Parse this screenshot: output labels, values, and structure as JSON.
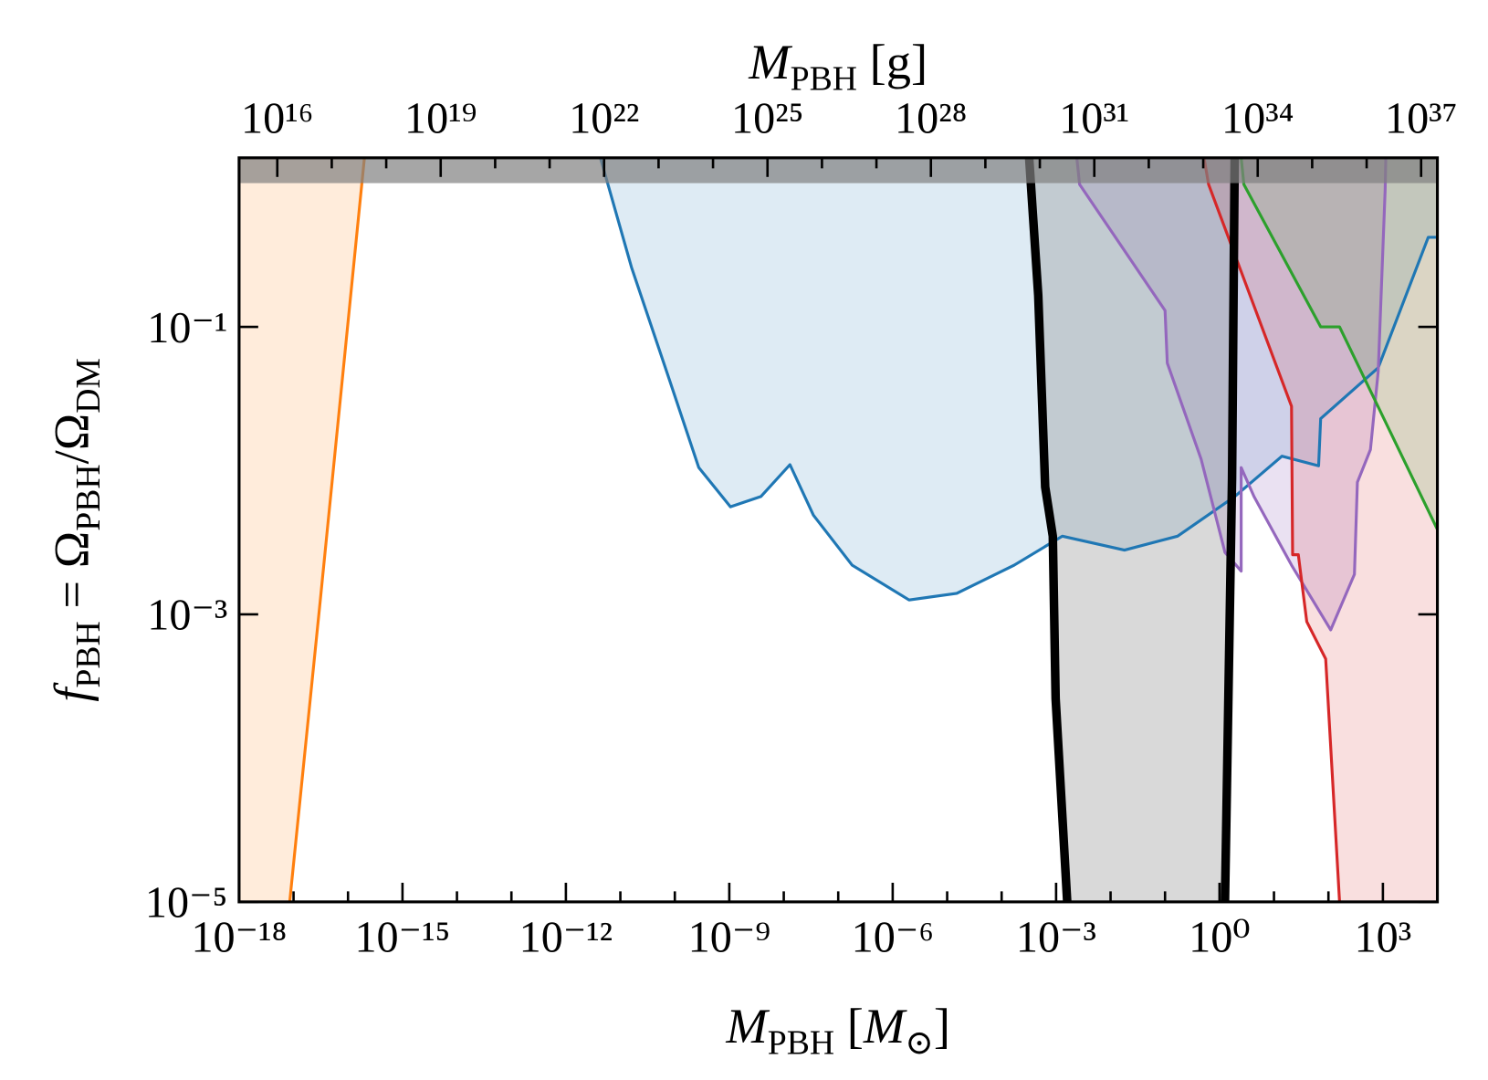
{
  "chart_data": {
    "type": "region",
    "xlabel": [
      "M",
      "PBH",
      " [",
      "M",
      "⊙",
      "]"
    ],
    "ylabel": [
      "f",
      "PBH",
      " = Ω",
      "PBH",
      "/Ω",
      "DM"
    ],
    "x2label": [
      "M",
      "PBH",
      " [g]"
    ],
    "xscale": "log",
    "yscale": "log",
    "xlim": [
      1e-18,
      10000.0
    ],
    "x2lim": [
      1989000000000000.0,
      1.989e+37
    ],
    "ylim": [
      1e-05,
      1.5
    ],
    "xticks": [
      {
        "value": 1e-18,
        "label": "10⁻¹⁸"
      },
      {
        "value": 1e-15,
        "label": "10⁻¹⁵"
      },
      {
        "value": 1e-12,
        "label": "10⁻¹²"
      },
      {
        "value": 1e-09,
        "label": "10⁻⁹"
      },
      {
        "value": 1e-06,
        "label": "10⁻⁶"
      },
      {
        "value": 0.001,
        "label": "10⁻³"
      },
      {
        "value": 1,
        "label": "10⁰"
      },
      {
        "value": 1000,
        "label": "10³"
      }
    ],
    "xminorticks": [
      1e-17,
      1e-16,
      1e-14,
      1e-13,
      1e-11,
      1e-10,
      1e-08,
      1e-07,
      1e-05,
      0.0001,
      0.01,
      0.1,
      10,
      100
    ],
    "x2ticks": [
      {
        "value": 1e+16,
        "label": "10¹⁶"
      },
      {
        "value": 1e+19,
        "label": "10¹⁹"
      },
      {
        "value": 1e+22,
        "label": "10²²"
      },
      {
        "value": 1e+25,
        "label": "10²⁵"
      },
      {
        "value": 1e+28,
        "label": "10²⁸"
      },
      {
        "value": 1e+31,
        "label": "10³¹"
      },
      {
        "value": 1e+34,
        "label": "10³⁴"
      },
      {
        "value": 1e+37,
        "label": "10³⁷"
      }
    ],
    "x2minorticks": [
      1e+17,
      1e+18,
      1e+20,
      1e+21,
      1e+23,
      1e+24,
      1e+26,
      1e+27,
      1e+29,
      1e+30,
      1e+32,
      1e+33,
      1e+35,
      1e+36
    ],
    "yticks": [
      {
        "value": 1e-05,
        "label": "10⁻⁵"
      },
      {
        "value": 0.001,
        "label": "10⁻³"
      },
      {
        "value": 0.1,
        "label": "10⁻¹"
      }
    ],
    "hspan": {
      "ymin": 1,
      "color": "#808080",
      "opacity": 0.7
    },
    "series": [
      {
        "color": "#ff7f0e",
        "fill": "left",
        "fill_opacity": 0.15,
        "linewidth": 3,
        "x": [
          2e-16,
          3.1e-17,
          8.5e-18
        ],
        "values": [
          1.5,
          0.00126,
          1e-05
        ]
      },
      {
        "color": "#1f77b4",
        "fill": "above",
        "fill_opacity": 0.15,
        "linewidth": 3,
        "x": [
          4.3e-12,
          1.6e-11,
          8.1e-11,
          2.75e-10,
          1.05e-09,
          3.8e-09,
          1.3e-08,
          3.5e-08,
          1.8e-07,
          2e-06,
          1.5e-05,
          0.00017,
          0.0013,
          0.018,
          0.17,
          1.9,
          14,
          66,
          72,
          820,
          6800,
          10000.0
        ],
        "values": [
          1.5,
          0.26,
          0.042,
          0.0105,
          0.0056,
          0.0066,
          0.011,
          0.0049,
          0.0022,
          0.00126,
          0.0014,
          0.0022,
          0.0035,
          0.0028,
          0.0035,
          0.0066,
          0.0126,
          0.0108,
          0.023,
          0.052,
          0.42,
          0.42
        ]
      },
      {
        "color": "#9467bd",
        "fill": "above",
        "fill_opacity": 0.2,
        "linewidth": 3,
        "x": [
          0.0024,
          0.0027,
          0.1,
          0.11,
          0.46,
          1.26,
          2.5,
          2.5,
          4.3,
          21,
          110,
          300,
          340,
          590,
          820,
          1100,
          1130
        ],
        "values": [
          1.5,
          0.98,
          0.13,
          0.056,
          0.012,
          0.0027,
          0.002,
          0.0105,
          0.0066,
          0.0022,
          0.00078,
          0.0019,
          0.0083,
          0.014,
          0.049,
          0.9,
          1.5
        ]
      },
      {
        "color": "#d62728",
        "fill": "right",
        "fill_opacity": 0.15,
        "linewidth": 3,
        "x": [
          0.52,
          0.63,
          21,
          22,
          28,
          40,
          89,
          160
        ],
        "values": [
          1.5,
          0.98,
          0.028,
          0.0026,
          0.0026,
          0.00089,
          0.00049,
          1e-05
        ]
      },
      {
        "color": "#2ca02c",
        "fill": "right",
        "fill_opacity": 0.15,
        "linewidth": 3,
        "x": [
          2.5,
          2.8,
          72,
          160,
          10000.0
        ],
        "values": [
          1.5,
          0.98,
          0.1,
          0.1,
          0.0039
        ]
      },
      {
        "color": "#000000",
        "fill": "between_next",
        "fill_color": "#808080",
        "fill_opacity": 0.3,
        "linewidth": 9,
        "x": [
          0.00032,
          0.00047,
          0.00063,
          0.00087,
          0.00098,
          0.0016
        ],
        "values": [
          1.5,
          0.166,
          0.0077,
          0.0035,
          0.00026,
          1e-05
        ]
      },
      {
        "color": "#000000",
        "linewidth": 9,
        "x": [
          1.9,
          1.7,
          1.26
        ],
        "values": [
          1.5,
          0.0089,
          1e-05
        ]
      }
    ]
  }
}
